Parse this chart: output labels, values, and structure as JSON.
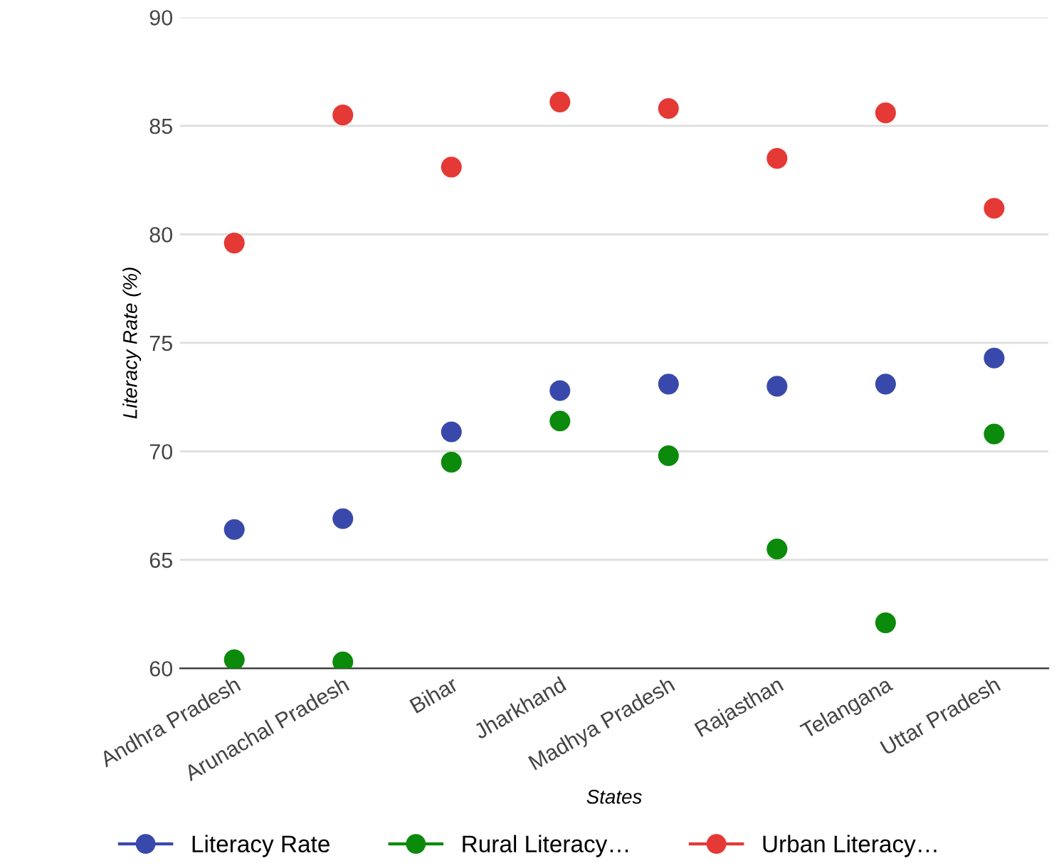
{
  "chart_data": {
    "type": "scatter",
    "xlabel": "States",
    "ylabel": "Literacy Rate (%)",
    "categories": [
      "Andhra Pradesh",
      "Arunachal Pradesh",
      "Bihar",
      "Jharkhand",
      "Madhya Pradesh",
      "Rajasthan",
      "Telangana",
      "Uttar Pradesh"
    ],
    "series": [
      {
        "name": "Literacy Rate",
        "color": "#3949ab",
        "values": [
          66.4,
          66.9,
          70.9,
          72.8,
          73.1,
          73.0,
          73.1,
          74.3
        ]
      },
      {
        "name": "Rural Literacy…",
        "color": "#0b8a0b",
        "values": [
          60.4,
          60.3,
          69.5,
          71.4,
          69.8,
          65.5,
          62.1,
          70.8
        ]
      },
      {
        "name": "Urban Literacy…",
        "color": "#e53935",
        "values": [
          79.6,
          85.5,
          83.1,
          86.1,
          85.8,
          83.5,
          85.6,
          81.2
        ]
      }
    ],
    "ylim": [
      60,
      90
    ],
    "yticks": [
      60,
      65,
      70,
      75,
      80,
      85,
      90
    ],
    "grid": "y",
    "legend": "bottom",
    "marker": "circle"
  }
}
